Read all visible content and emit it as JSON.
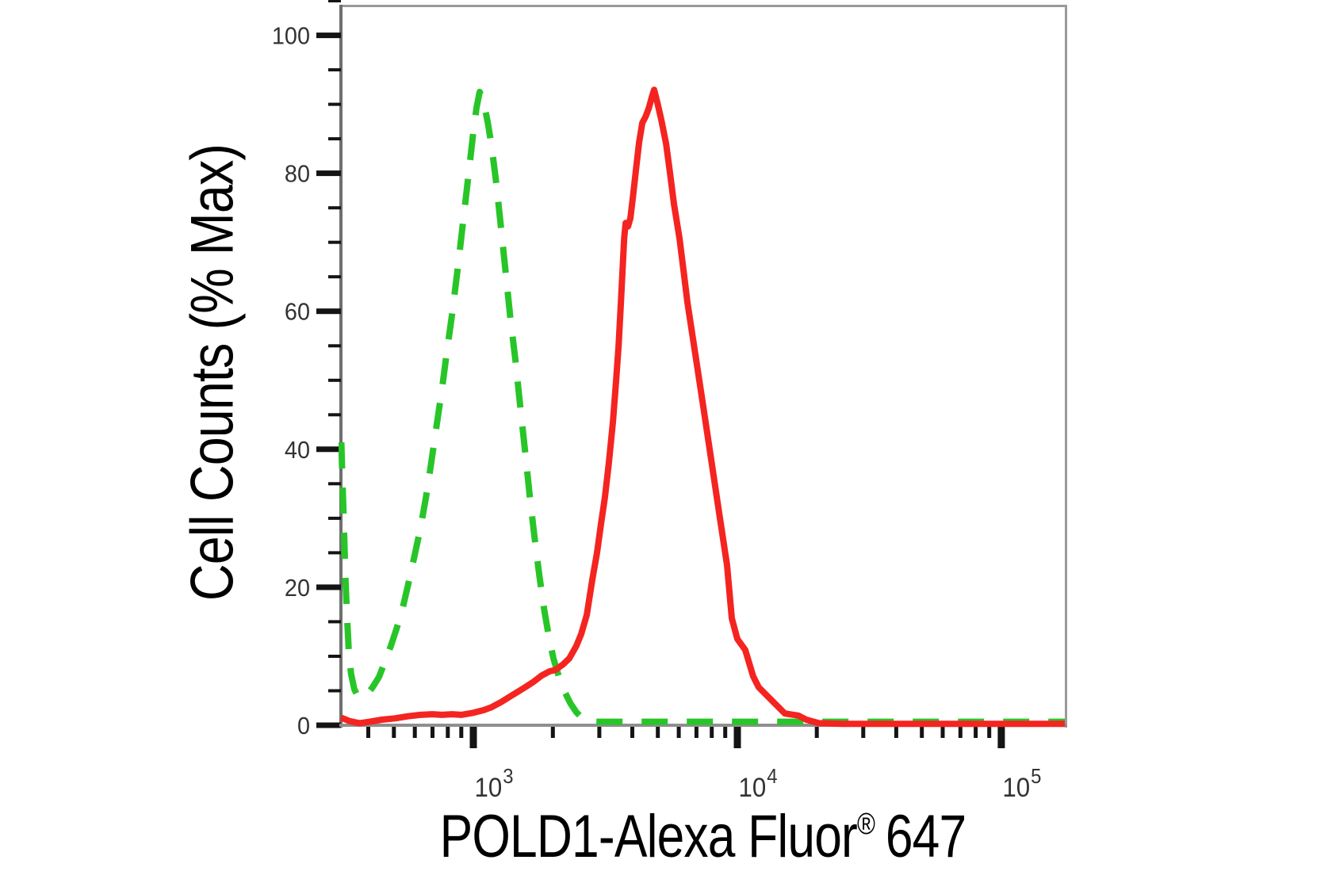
{
  "figure": {
    "ylabel": "Cell Counts (% Max)",
    "xlabel_main": "POLD1-Alexa Fluor",
    "xlabel_sup": "®",
    "xlabel_tail": "647"
  },
  "colors": {
    "red": "#f42420",
    "green": "#28c528",
    "border": "#9a9a9a",
    "axis_left": "#6f6f6f",
    "axis_bottom": "#8f8f8f",
    "tick": "#141414",
    "tick_label": "#333333",
    "title": "#000000"
  },
  "chart_data": {
    "type": "line",
    "title": "",
    "xlabel": "POLD1-Alexa Fluor® 647",
    "ylabel": "Cell Counts (% Max)",
    "xscale": "log",
    "grid": false,
    "legend": "none",
    "xlim": [
      315,
      174000
    ],
    "ylim": [
      0,
      104.2
    ],
    "yticks_major": [
      {
        "value": 0,
        "label": "0"
      },
      {
        "value": 20,
        "label": "20"
      },
      {
        "value": 40,
        "label": "40"
      },
      {
        "value": 60,
        "label": "60"
      },
      {
        "value": 80,
        "label": "80"
      },
      {
        "value": 100,
        "label": "100"
      }
    ],
    "yticks_minor": [
      5,
      10,
      15,
      25,
      30,
      35,
      45,
      50,
      55,
      65,
      70,
      75,
      85,
      90,
      95,
      105
    ],
    "xticks_major": [
      {
        "value": 1000,
        "base": "10",
        "exp": "3"
      },
      {
        "value": 10000,
        "base": "10",
        "exp": "4"
      },
      {
        "value": 100000,
        "base": "10",
        "exp": "5"
      }
    ],
    "xticks_minor": [
      400,
      500,
      600,
      700,
      800,
      900,
      2000,
      3000,
      4000,
      5000,
      6000,
      7000,
      8000,
      9000,
      20000,
      30000,
      40000,
      50000,
      60000,
      70000,
      80000,
      90000
    ],
    "series": [
      {
        "name": "control-green-dashed",
        "line_style": "dashed",
        "color_key": "green",
        "peak": {
          "x": 1057,
          "y": 91.8
        },
        "points": [
          [
            316,
            41
          ],
          [
            319,
            36
          ],
          [
            322,
            31
          ],
          [
            325,
            26
          ],
          [
            328,
            21
          ],
          [
            332,
            16
          ],
          [
            337,
            11
          ],
          [
            344,
            7.5
          ],
          [
            354,
            5.2
          ],
          [
            364,
            4.3
          ],
          [
            375,
            4.0
          ],
          [
            393,
            4.3
          ],
          [
            415,
            5.5
          ],
          [
            439,
            7.0
          ],
          [
            460,
            9.0
          ],
          [
            487,
            11.5
          ],
          [
            512,
            14.0
          ],
          [
            540,
            17.0
          ],
          [
            567,
            20.5
          ],
          [
            598,
            24.5
          ],
          [
            630,
            28.5
          ],
          [
            661,
            33.0
          ],
          [
            689,
            37.5
          ],
          [
            723,
            43.0
          ],
          [
            759,
            48.5
          ],
          [
            790,
            53.5
          ],
          [
            830,
            59.5
          ],
          [
            871,
            66.0
          ],
          [
            908,
            72.0
          ],
          [
            940,
            77.0
          ],
          [
            973,
            82.0
          ],
          [
            1000,
            86.0
          ],
          [
            1028,
            89.5
          ],
          [
            1057,
            91.8
          ],
          [
            1094,
            90.3
          ],
          [
            1132,
            87.5
          ],
          [
            1172,
            84.0
          ],
          [
            1222,
            78.5
          ],
          [
            1274,
            72.0
          ],
          [
            1327,
            65.5
          ],
          [
            1381,
            59.0
          ],
          [
            1442,
            53.0
          ],
          [
            1503,
            46.5
          ],
          [
            1567,
            40.0
          ],
          [
            1633,
            33.5
          ],
          [
            1702,
            27.5
          ],
          [
            1774,
            22.0
          ],
          [
            1850,
            17.0
          ],
          [
            1929,
            13.0
          ],
          [
            2010,
            9.7
          ],
          [
            2110,
            7.0
          ],
          [
            2215,
            4.9
          ],
          [
            2330,
            3.2
          ],
          [
            2455,
            1.9
          ],
          [
            2590,
            1.0
          ],
          [
            2730,
            0.55
          ],
          [
            3000,
            0.5
          ],
          [
            4000,
            0.5
          ],
          [
            6000,
            0.5
          ],
          [
            9000,
            0.5
          ],
          [
            14000,
            0.5
          ],
          [
            22000,
            0.5
          ],
          [
            35000,
            0.5
          ],
          [
            55000,
            0.5
          ],
          [
            90000,
            0.5
          ],
          [
            140000,
            0.5
          ],
          [
            174000,
            0.5
          ]
        ]
      },
      {
        "name": "pold1-red-solid",
        "line_style": "solid",
        "color_key": "red",
        "peak": {
          "x": 4840,
          "y": 92.1
        },
        "points": [
          [
            315,
            1.1
          ],
          [
            340,
            0.6
          ],
          [
            370,
            0.3
          ],
          [
            405,
            0.5
          ],
          [
            450,
            0.8
          ],
          [
            505,
            1.0
          ],
          [
            565,
            1.3
          ],
          [
            630,
            1.5
          ],
          [
            700,
            1.6
          ],
          [
            760,
            1.5
          ],
          [
            830,
            1.6
          ],
          [
            900,
            1.5
          ],
          [
            1000,
            1.8
          ],
          [
            1095,
            2.2
          ],
          [
            1170,
            2.6
          ],
          [
            1280,
            3.4
          ],
          [
            1395,
            4.3
          ],
          [
            1495,
            5.0
          ],
          [
            1600,
            5.7
          ],
          [
            1690,
            6.3
          ],
          [
            1815,
            7.2
          ],
          [
            1940,
            7.8
          ],
          [
            2040,
            8.0
          ],
          [
            2185,
            8.8
          ],
          [
            2310,
            9.7
          ],
          [
            2455,
            11.5
          ],
          [
            2560,
            13.2
          ],
          [
            2690,
            16.0
          ],
          [
            2820,
            21.0
          ],
          [
            2940,
            25.0
          ],
          [
            3040,
            29.0
          ],
          [
            3150,
            33.0
          ],
          [
            3260,
            38.0
          ],
          [
            3380,
            44.0
          ],
          [
            3475,
            50.0
          ],
          [
            3550,
            55.0
          ],
          [
            3620,
            61.0
          ],
          [
            3675,
            66.0
          ],
          [
            3725,
            70.5
          ],
          [
            3775,
            72.8
          ],
          [
            3855,
            72.3
          ],
          [
            3935,
            73.5
          ],
          [
            4020,
            76.5
          ],
          [
            4130,
            80.5
          ],
          [
            4245,
            84.5
          ],
          [
            4365,
            87.3
          ],
          [
            4490,
            88.2
          ],
          [
            4615,
            89.4
          ],
          [
            4740,
            91.0
          ],
          [
            4840,
            92.1
          ],
          [
            4975,
            90.3
          ],
          [
            5150,
            87.8
          ],
          [
            5370,
            84.3
          ],
          [
            5560,
            80.0
          ],
          [
            5755,
            75.5
          ],
          [
            6040,
            70.5
          ],
          [
            6250,
            66.0
          ],
          [
            6470,
            61.3
          ],
          [
            6935,
            53.7
          ],
          [
            7430,
            46.2
          ],
          [
            7960,
            38.5
          ],
          [
            8530,
            30.8
          ],
          [
            9140,
            23.2
          ],
          [
            9530,
            15.5
          ],
          [
            10000,
            12.5
          ],
          [
            10715,
            10.9
          ],
          [
            11480,
            7.1
          ],
          [
            12050,
            5.5
          ],
          [
            13180,
            4.0
          ],
          [
            14420,
            2.5
          ],
          [
            15140,
            1.7
          ],
          [
            17020,
            1.4
          ],
          [
            18240,
            0.8
          ],
          [
            20370,
            0.3
          ],
          [
            25000,
            0.2
          ],
          [
            40000,
            0.2
          ],
          [
            70000,
            0.2
          ],
          [
            120000,
            0.2
          ],
          [
            174000,
            0.2
          ]
        ]
      }
    ]
  }
}
